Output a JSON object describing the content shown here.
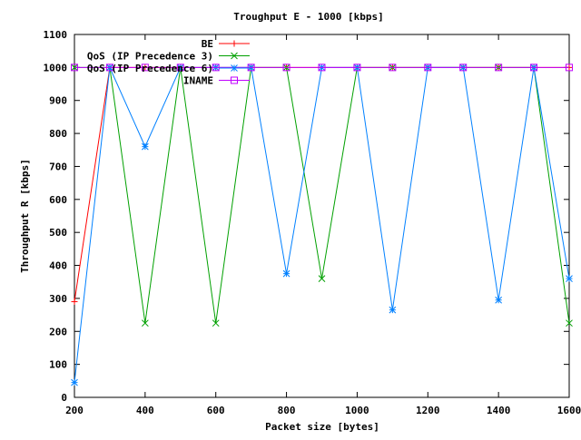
{
  "chart_data": {
    "type": "line",
    "title": "Troughput E - 1000 [kbps]",
    "xlabel": "Packet size [bytes]",
    "ylabel": "Throughput R [kbps]",
    "xlim": [
      200,
      1600
    ],
    "ylim": [
      0,
      1100
    ],
    "x_ticks": [
      200,
      400,
      600,
      800,
      1000,
      1200,
      1400,
      1600
    ],
    "y_ticks": [
      0,
      100,
      200,
      300,
      400,
      500,
      600,
      700,
      800,
      900,
      1000,
      1100
    ],
    "x_tick_labels": [
      "200",
      "400",
      "600",
      "800",
      "1000",
      "1200",
      "1400",
      "1600"
    ],
    "y_tick_labels": [
      "0",
      "100",
      "200",
      "300",
      "400",
      "500",
      "600",
      "700",
      "800",
      "900",
      "1000",
      "1100"
    ],
    "legend_position": "top-left",
    "grid": false,
    "x": [
      200,
      300,
      400,
      500,
      600,
      700,
      800,
      900,
      1000,
      1100,
      1200,
      1300,
      1400,
      1500,
      1600
    ],
    "series": [
      {
        "name": "BE",
        "color": "#ff0000",
        "marker": "plus",
        "values": [
          290,
          1000,
          1000,
          1000,
          1000,
          1000,
          1000,
          1000,
          1000,
          1000,
          1000,
          1000,
          1000,
          1000,
          1000
        ]
      },
      {
        "name": "QoS (IP Precedence 3)",
        "color": "#00a000",
        "marker": "cross",
        "values": [
          1000,
          1000,
          225,
          1000,
          225,
          1000,
          1000,
          360,
          1000,
          1000,
          1000,
          1000,
          1000,
          1000,
          225
        ]
      },
      {
        "name": "QoS (IP Precedence 6)",
        "color": "#0080ff",
        "marker": "star",
        "values": [
          45,
          1000,
          760,
          1000,
          1000,
          1000,
          375,
          1000,
          1000,
          265,
          1000,
          1000,
          295,
          1000,
          360
        ]
      },
      {
        "name": "INAME",
        "color": "#c000ff",
        "marker": "square",
        "values": [
          1000,
          1000,
          1000,
          1000,
          1000,
          1000,
          1000,
          1000,
          1000,
          1000,
          1000,
          1000,
          1000,
          1000,
          1000
        ]
      }
    ]
  }
}
